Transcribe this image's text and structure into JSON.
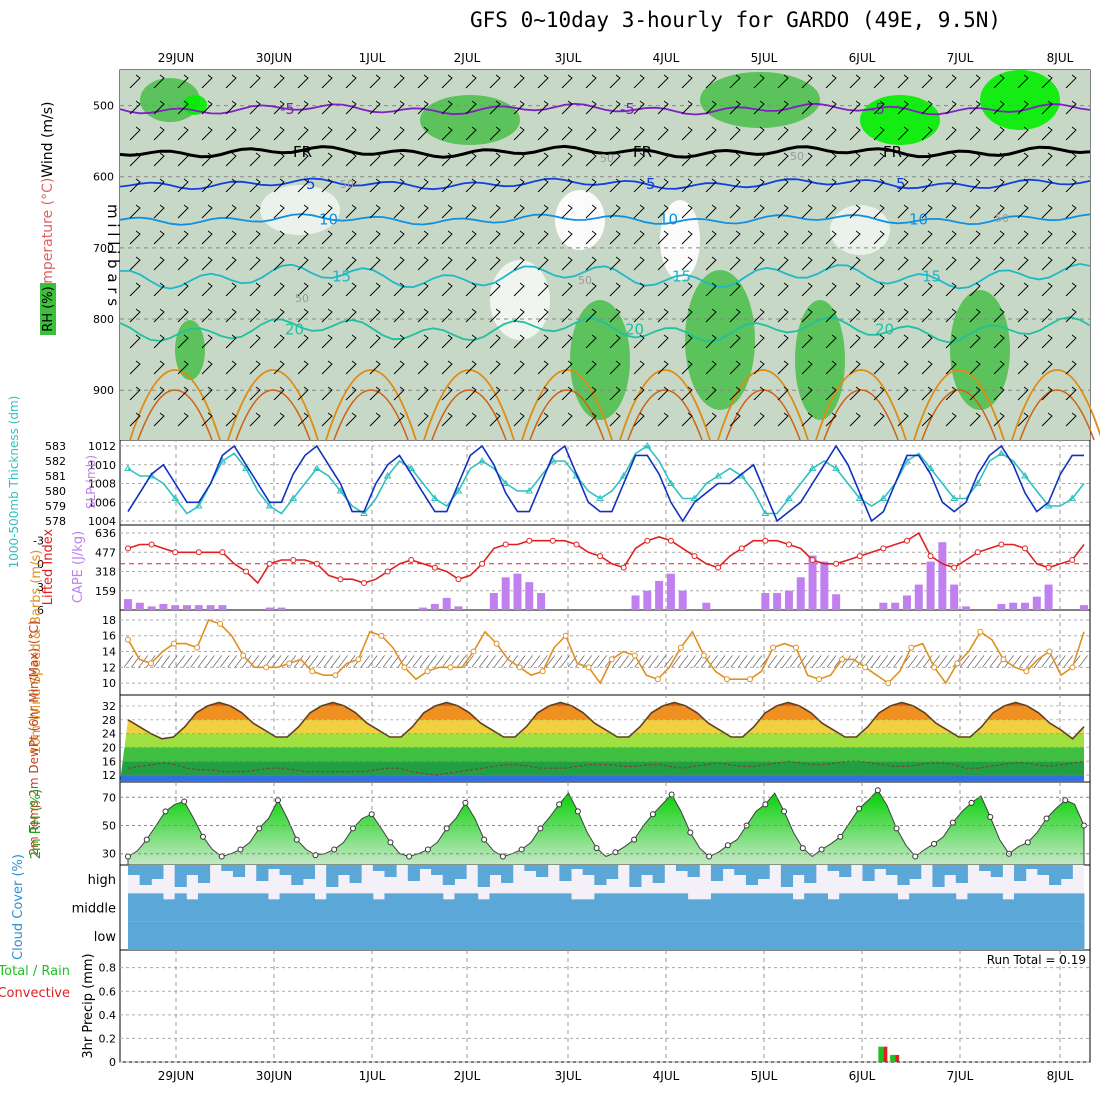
{
  "title": "GFS 0~10day 3-hourly for GARDO (49E, 9.5N)",
  "dates": [
    "29JUN",
    "30JUN",
    "1JUL",
    "2JUL",
    "3JUL",
    "4JUL",
    "5JUL",
    "6JUL",
    "7JUL",
    "8JUL"
  ],
  "run_total_text": "Run Total = 0.19",
  "colors": {
    "rh_light": "#c7d8c7",
    "rh_mid": "#98c898",
    "rh_dark": "#50c050",
    "rh_bright": "#00ee00",
    "slp": "#1030c0",
    "thickness": "#30c0c0",
    "li": "#e02020",
    "cape": "#c080f0",
    "wind": "#e09020",
    "cloud": "#5ba8d8",
    "precip_total": "#20c020",
    "precip_conv": "#e02020"
  },
  "chart_data": [
    {
      "panel": "upper-air",
      "type": "contour",
      "title": "GFS 0~10day 3-hourly for GARDO (49E, 9.5N)",
      "ylabel": "m i l l i b a r s",
      "labels": {
        "wind": "Wind (m/s)",
        "temp": "Temperature (°C)",
        "rh": "RH (%)"
      },
      "yticks": [
        500,
        600,
        700,
        800,
        900
      ],
      "ylim": [
        450,
        970
      ],
      "temperature_isotherms": [
        {
          "value": "-5",
          "pressure": 505
        },
        {
          "value": "FR",
          "pressure": 565
        },
        {
          "value": "5",
          "pressure": 610
        },
        {
          "value": "10",
          "pressure": 660
        },
        {
          "value": "15",
          "pressure": 740
        },
        {
          "value": "20",
          "pressure": 815
        }
      ],
      "rh_labels": [
        "50",
        "50",
        "50",
        "50",
        "50",
        "50"
      ]
    },
    {
      "panel": "slp-thickness",
      "type": "line",
      "ylabel_left": "1000-500mb Thickness (dm)",
      "ylabel_right": "SLP (mb)",
      "yticks_thickness": [
        578,
        579,
        580,
        581,
        582,
        583
      ],
      "yticks_slp": [
        1004,
        1006,
        1008,
        1010,
        1012
      ],
      "series": [
        {
          "name": "SLP",
          "axis": "slp",
          "values": [
            1005,
            1007,
            1009,
            1010,
            1008,
            1006,
            1006,
            1008,
            1011,
            1012,
            1010,
            1008,
            1006,
            1006,
            1009,
            1011,
            1012,
            1010,
            1008,
            1005,
            1005,
            1008,
            1010,
            1011,
            1009,
            1007,
            1005,
            1005,
            1008,
            1011,
            1012,
            1010,
            1007,
            1005,
            1005,
            1008,
            1011,
            1012,
            1009,
            1006,
            1005,
            1005,
            1008,
            1011,
            1011,
            1009,
            1006,
            1004,
            1006,
            1007,
            1008,
            1008,
            1009,
            1010,
            1007,
            1004,
            1005,
            1006,
            1008,
            1010,
            1012,
            1010,
            1007,
            1004,
            1005,
            1008,
            1011,
            1011,
            1009,
            1006,
            1005,
            1006,
            1009,
            1011,
            1012,
            1010,
            1007,
            1005,
            1006,
            1009,
            1011,
            1011
          ]
        },
        {
          "name": "Thickness",
          "axis": "thickness",
          "values": [
            581.5,
            581,
            581,
            580.5,
            579.5,
            578.5,
            579,
            580.5,
            582,
            582.5,
            581.5,
            580,
            579,
            578.5,
            579.5,
            580.5,
            581.5,
            581,
            580,
            579,
            578.5,
            579.5,
            581,
            582,
            581.5,
            580.5,
            579.5,
            579,
            580,
            581.5,
            582,
            581.5,
            580.5,
            580,
            580,
            581,
            582,
            582,
            581,
            580,
            579.5,
            580,
            581,
            582.5,
            583,
            582,
            580.5,
            579.5,
            579.5,
            580.5,
            581,
            581.5,
            581,
            580,
            578.5,
            578.5,
            579.5,
            580.5,
            581.5,
            582,
            581.5,
            580.5,
            579.5,
            579,
            579.5,
            580.5,
            582,
            582.5,
            581.5,
            580.5,
            579.5,
            579.5,
            580.5,
            582,
            582.5,
            582,
            581,
            580,
            579,
            579,
            579.5,
            580.5
          ]
        }
      ]
    },
    {
      "panel": "li-cape",
      "type": "bar",
      "ylabel_left": "Lifted Index",
      "ylabel_right": "CAPE (J/kg)",
      "yticks_li": [
        -3,
        0,
        3,
        6
      ],
      "yticks_cape": [
        159,
        318,
        477,
        636
      ],
      "series": [
        {
          "name": "Lifted Index",
          "values": [
            -2,
            -2.5,
            -2.5,
            -2,
            -1.5,
            -1.5,
            -1.5,
            -1.5,
            -1.5,
            0,
            1,
            2.5,
            0,
            -0.5,
            -0.5,
            -0.5,
            0,
            1.5,
            2,
            2,
            2.5,
            2,
            1,
            0,
            -0.5,
            0,
            0.5,
            1,
            2,
            1.5,
            0,
            -2,
            -2.5,
            -2.5,
            -3,
            -3,
            -3,
            -3,
            -2.5,
            -1.5,
            -1,
            0,
            0.5,
            -2,
            -3,
            -3.5,
            -3,
            -2,
            -1,
            0,
            0.5,
            -1,
            -2,
            -3,
            -3,
            -3,
            -2.5,
            -2,
            -0.5,
            0,
            0,
            -0.5,
            -1,
            -1.5,
            -2,
            -2.5,
            -3,
            -4,
            -1,
            0,
            0.5,
            -0.5,
            -1.5,
            -2,
            -2.5,
            -2.5,
            -2,
            0,
            0.5,
            0,
            -0.5,
            -2.5
          ]
        },
        {
          "name": "CAPE",
          "values": [
            90,
            60,
            30,
            50,
            40,
            40,
            40,
            40,
            40,
            0,
            0,
            0,
            20,
            20,
            0,
            0,
            0,
            0,
            0,
            0,
            0,
            0,
            0,
            0,
            0,
            20,
            50,
            100,
            30,
            0,
            0,
            140,
            270,
            300,
            230,
            140,
            0,
            0,
            0,
            0,
            0,
            0,
            0,
            120,
            160,
            240,
            300,
            160,
            0,
            60,
            0,
            0,
            0,
            0,
            140,
            140,
            160,
            270,
            450,
            400,
            130,
            0,
            0,
            0,
            60,
            60,
            120,
            210,
            400,
            560,
            210,
            30,
            0,
            0,
            50,
            60,
            60,
            110,
            210,
            0,
            0,
            40
          ]
        }
      ]
    },
    {
      "panel": "10m-wind",
      "type": "line",
      "ylabel": "10m Wind Speed & Barbs (m/s)",
      "yticks": [
        10,
        12,
        14,
        16,
        18
      ],
      "series": [
        {
          "name": "Wind Speed",
          "values": [
            15.5,
            13,
            12.5,
            14,
            15,
            15,
            14.5,
            18,
            17.5,
            16,
            13.5,
            12,
            12,
            12,
            12.5,
            13,
            11.5,
            11,
            11,
            12.5,
            13,
            16.5,
            16,
            14.5,
            12,
            10.5,
            11.5,
            12,
            12,
            12,
            14,
            16.5,
            15,
            13,
            12,
            11,
            11.5,
            14.5,
            16,
            12.5,
            12,
            10,
            13,
            14,
            13.5,
            11,
            10.5,
            12,
            14.5,
            16.5,
            13.5,
            11.5,
            10.5,
            10.5,
            10.5,
            11.5,
            14.5,
            15,
            14.5,
            11,
            10.5,
            11,
            13,
            13,
            12,
            11,
            10,
            11.5,
            14.5,
            15,
            12,
            10,
            12.5,
            14,
            16.5,
            15.5,
            13,
            12,
            11.5,
            13,
            14,
            11,
            12,
            16.5
          ]
        }
      ]
    },
    {
      "panel": "2m-temp",
      "type": "area",
      "ylabel": "2m Temp 2m DewPt (6hr Min/Max) (°C)",
      "yticks": [
        12,
        16,
        20,
        24,
        28,
        32
      ],
      "series": [
        {
          "name": "2m Temp",
          "values": [
            28,
            26,
            24,
            22.5,
            23,
            26,
            30,
            32,
            33,
            32,
            30,
            27,
            25,
            23,
            23,
            26,
            30,
            32,
            33,
            32,
            30,
            27,
            25,
            23,
            23,
            26,
            30,
            32,
            33,
            32,
            30,
            27,
            25,
            23,
            23,
            26,
            30,
            32,
            33,
            32,
            30,
            27,
            25,
            23,
            23,
            26,
            30,
            32,
            33,
            32,
            30,
            27,
            25,
            23,
            23,
            26,
            30,
            32,
            33,
            32,
            30,
            27,
            25,
            23,
            23,
            26,
            30,
            32,
            33,
            32,
            30,
            27,
            25,
            23,
            23,
            26,
            30,
            32,
            33,
            32,
            30,
            27,
            25,
            22.5,
            26
          ]
        },
        {
          "name": "2m DewPt",
          "values": [
            14,
            14.5,
            15,
            15.5,
            15,
            14,
            13.5,
            13.5,
            13,
            13,
            13,
            13.5,
            14,
            14,
            13.5,
            13,
            13,
            13,
            13,
            13,
            13,
            13.5,
            14,
            14,
            13,
            12.5,
            12,
            12.5,
            13,
            13.5,
            14,
            14.5,
            15,
            15,
            14.5,
            14,
            14,
            14,
            14.5,
            15,
            15,
            15,
            14.5,
            14.5,
            15,
            15,
            14.5,
            14,
            14.5,
            15,
            15.5,
            15,
            14.5,
            14.5,
            15,
            15.5,
            16,
            15.5,
            15,
            15,
            15.5,
            16,
            16,
            15.5,
            15,
            14.5,
            14.5,
            15,
            15.5,
            15.5,
            15,
            14,
            14,
            14.5,
            15,
            15.5,
            15.5,
            15,
            14.5,
            15,
            15.5,
            16
          ]
        }
      ]
    },
    {
      "panel": "2m-rh",
      "type": "area",
      "ylabel": "2m RH (%)",
      "yticks": [
        30,
        50,
        70
      ],
      "series": [
        {
          "name": "2m RH",
          "values": [
            28,
            32,
            40,
            50,
            60,
            65,
            67,
            55,
            42,
            33,
            28,
            30,
            33,
            38,
            48,
            55,
            68,
            55,
            40,
            33,
            29,
            30,
            33,
            38,
            48,
            55,
            58,
            48,
            38,
            30,
            28,
            30,
            33,
            38,
            48,
            55,
            66,
            55,
            40,
            32,
            28,
            30,
            33,
            38,
            48,
            56,
            65,
            73,
            60,
            45,
            34,
            28,
            31,
            35,
            40,
            50,
            58,
            65,
            72,
            60,
            45,
            34,
            28,
            31,
            36,
            40,
            50,
            60,
            65,
            73,
            60,
            45,
            34,
            28,
            33,
            37,
            42,
            52,
            62,
            68,
            75,
            64,
            48,
            36,
            28,
            33,
            37,
            42,
            52,
            60,
            66,
            71,
            56,
            40,
            30,
            35,
            38,
            45,
            55,
            62,
            68,
            65,
            50
          ]
        }
      ]
    },
    {
      "panel": "cloud-cover",
      "type": "heatmap",
      "ylabel": "Cloud Cover (%)",
      "levels": [
        "high",
        "middle",
        "low"
      ]
    },
    {
      "panel": "precip",
      "type": "bar",
      "ylabel": "3hr Precip (mm)",
      "legend": [
        "Total / Rain",
        "Convective"
      ],
      "yticks": [
        0,
        0.2,
        0.4,
        0.6,
        0.8
      ],
      "ylim": [
        0,
        0.95
      ],
      "series": [
        {
          "name": "Total / Rain",
          "values": [
            {
              "index": 64,
              "value": 0.13
            },
            {
              "index": 65,
              "value": 0.06
            }
          ]
        },
        {
          "name": "Convective",
          "values": [
            {
              "index": 64,
              "value": 0.13
            },
            {
              "index": 65,
              "value": 0.06
            }
          ]
        }
      ]
    }
  ]
}
